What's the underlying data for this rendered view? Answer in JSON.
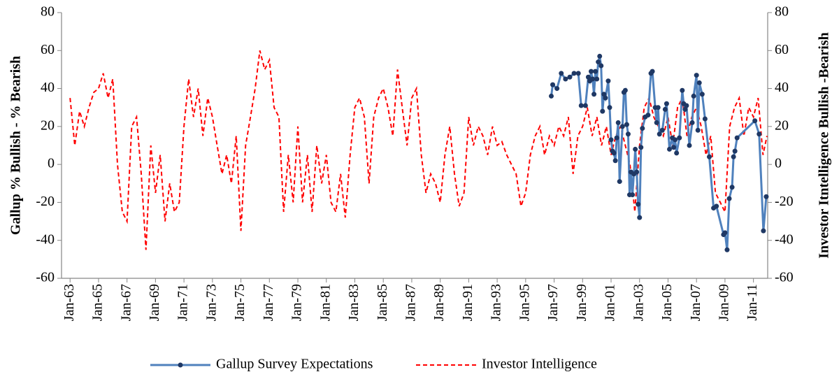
{
  "chart_data": {
    "type": "line",
    "y_label": "Gallup % Bullish - % Bearish",
    "y2_label": "Investor Itntelligence Bullish -Bearish",
    "xlim": [
      1962.4,
      2012.0
    ],
    "xticks": [
      {
        "value": 1963,
        "label": "Jan-63"
      },
      {
        "value": 1965,
        "label": "Jan-65"
      },
      {
        "value": 1967,
        "label": "Jan-67"
      },
      {
        "value": 1969,
        "label": "Jan-69"
      },
      {
        "value": 1971,
        "label": "Jan-71"
      },
      {
        "value": 1973,
        "label": "Jan-73"
      },
      {
        "value": 1975,
        "label": "Jan-75"
      },
      {
        "value": 1977,
        "label": "Jan-77"
      },
      {
        "value": 1979,
        "label": "Jan-79"
      },
      {
        "value": 1981,
        "label": "Jan-81"
      },
      {
        "value": 1983,
        "label": "Jan-83"
      },
      {
        "value": 1985,
        "label": "Jan-85"
      },
      {
        "value": 1987,
        "label": "Jan-87"
      },
      {
        "value": 1989,
        "label": "Jan-89"
      },
      {
        "value": 1991,
        "label": "Jan-91"
      },
      {
        "value": 1993,
        "label": "Jan-93"
      },
      {
        "value": 1995,
        "label": "Jan-95"
      },
      {
        "value": 1997,
        "label": "Jan-97"
      },
      {
        "value": 1999,
        "label": "Jan-99"
      },
      {
        "value": 2001,
        "label": "Jan-01"
      },
      {
        "value": 2003,
        "label": "Jan-03"
      },
      {
        "value": 2005,
        "label": "Jan-05"
      },
      {
        "value": 2007,
        "label": "Jan-07"
      },
      {
        "value": 2009,
        "label": "Jan-09"
      },
      {
        "value": 2011,
        "label": "Jan-11"
      }
    ],
    "ylim": [
      -60,
      80
    ],
    "yticks": [
      -60,
      -40,
      -20,
      0,
      20,
      40,
      60,
      80
    ],
    "y2lim": [
      -60,
      80
    ],
    "y2ticks": [
      -60,
      -40,
      -20,
      0,
      20,
      40,
      60,
      80
    ],
    "grid": false,
    "legend": "bottom",
    "series": [
      {
        "name": "Gallup Survey Expectations",
        "color": "#4f81bd",
        "marker": true,
        "dashed": false,
        "x": [
          1996.8,
          1996.9,
          1997.2,
          1997.5,
          1997.8,
          1998.1,
          1998.4,
          1998.7,
          1998.9,
          1999.2,
          1999.4,
          1999.5,
          1999.6,
          1999.7,
          1999.8,
          1999.9,
          2000.0,
          2000.1,
          2000.2,
          2000.3,
          2000.4,
          2000.5,
          2000.6,
          2000.8,
          2000.9,
          2001.0,
          2001.1,
          2001.2,
          2001.3,
          2001.4,
          2001.5,
          2001.6,
          2001.8,
          2001.9,
          2002.0,
          2002.1,
          2002.2,
          2002.3,
          2002.4,
          2002.5,
          2002.6,
          2002.7,
          2002.8,
          2002.9,
          2003.0,
          2003.1,
          2003.2,
          2003.4,
          2003.6,
          2003.8,
          2003.9,
          2004.1,
          2004.2,
          2004.3,
          2004.4,
          2004.6,
          2004.8,
          2004.9,
          2005.1,
          2005.3,
          2005.4,
          2005.5,
          2005.6,
          2005.8,
          2006.0,
          2006.1,
          2006.2,
          2006.3,
          2006.5,
          2006.7,
          2006.8,
          2007.0,
          2007.1,
          2007.2,
          2007.4,
          2007.6,
          2007.9,
          2008.2,
          2008.4,
          2008.9,
          2009.0,
          2009.15,
          2009.3,
          2009.5,
          2009.6,
          2009.7,
          2009.85,
          2011.1,
          2011.4,
          2011.7,
          2011.9
        ],
        "values": [
          36,
          42,
          40,
          48,
          45,
          46,
          48,
          48,
          31,
          31,
          46,
          44,
          49,
          45,
          37,
          49,
          45,
          54,
          57,
          52,
          28,
          37,
          35,
          44,
          30,
          13,
          7,
          6,
          2,
          14,
          22,
          -9,
          20,
          38,
          39,
          21,
          16,
          -16,
          -4,
          -16,
          -5,
          8,
          -4,
          -21,
          -28,
          9,
          19,
          25,
          26,
          48,
          49,
          30,
          22,
          30,
          16,
          18,
          29,
          32,
          8,
          14,
          9,
          13,
          6,
          14,
          39,
          32,
          29,
          31,
          10,
          22,
          36,
          47,
          18,
          43,
          37,
          24,
          4,
          -23,
          -22,
          -37,
          -36,
          -45,
          -18,
          -12,
          4,
          7,
          14,
          23,
          16,
          -35,
          -17
        ]
      },
      {
        "name": "Investor Intelligence",
        "color": "#ff0000",
        "marker": false,
        "dashed": true,
        "x": [
          1963,
          1963.33,
          1963.67,
          1964,
          1964.33,
          1964.67,
          1965,
          1965.33,
          1965.67,
          1966,
          1966.33,
          1966.67,
          1967,
          1967.33,
          1967.67,
          1968,
          1968.33,
          1968.67,
          1969,
          1969.33,
          1969.67,
          1970,
          1970.33,
          1970.67,
          1971,
          1971.33,
          1971.67,
          1972,
          1972.33,
          1972.67,
          1973,
          1973.33,
          1973.67,
          1974,
          1974.33,
          1974.67,
          1975,
          1975.33,
          1975.67,
          1976,
          1976.33,
          1976.67,
          1977,
          1977.33,
          1977.67,
          1978,
          1978.33,
          1978.67,
          1979,
          1979.33,
          1979.67,
          1980,
          1980.33,
          1980.67,
          1981,
          1981.33,
          1981.67,
          1982,
          1982.33,
          1982.67,
          1983,
          1983.33,
          1983.67,
          1984,
          1984.33,
          1984.67,
          1985,
          1985.33,
          1985.67,
          1986,
          1986.33,
          1986.67,
          1987,
          1987.33,
          1987.67,
          1988,
          1988.33,
          1988.67,
          1989,
          1989.33,
          1989.67,
          1990,
          1990.33,
          1990.67,
          1991,
          1991.33,
          1991.67,
          1992,
          1992.33,
          1992.67,
          1993,
          1993.33,
          1993.67,
          1994,
          1994.33,
          1994.67,
          1995,
          1995.33,
          1995.67,
          1996,
          1996.33,
          1996.67,
          1997,
          1997.33,
          1997.67,
          1998,
          1998.33,
          1998.67,
          1999,
          1999.33,
          1999.67,
          2000,
          2000.33,
          2000.67,
          2001,
          2001.33,
          2001.67,
          2002,
          2002.33,
          2002.67,
          2003,
          2003.33,
          2003.67,
          2004,
          2004.33,
          2004.67,
          2005,
          2005.33,
          2005.67,
          2006,
          2006.33,
          2006.67,
          2007,
          2007.33,
          2007.67,
          2008,
          2008.33,
          2008.67,
          2009,
          2009.33,
          2009.67,
          2010,
          2010.33,
          2010.67,
          2011,
          2011.33,
          2011.67,
          2011.95
        ],
        "values": [
          35,
          10,
          28,
          20,
          30,
          38,
          40,
          48,
          35,
          45,
          0,
          -25,
          -30,
          20,
          25,
          -5,
          -45,
          10,
          -15,
          5,
          -30,
          -10,
          -25,
          -20,
          20,
          45,
          25,
          40,
          15,
          35,
          25,
          10,
          -5,
          5,
          -10,
          15,
          -35,
          10,
          25,
          40,
          60,
          50,
          55,
          30,
          25,
          -25,
          5,
          -20,
          20,
          -20,
          5,
          -25,
          10,
          -10,
          5,
          -20,
          -25,
          -5,
          -28,
          5,
          30,
          35,
          25,
          -10,
          25,
          35,
          40,
          30,
          15,
          50,
          30,
          10,
          35,
          40,
          5,
          -15,
          -5,
          -10,
          -20,
          5,
          20,
          -5,
          -22,
          -15,
          25,
          10,
          20,
          15,
          5,
          20,
          10,
          12,
          5,
          0,
          -5,
          -22,
          -15,
          5,
          15,
          20,
          5,
          15,
          10,
          20,
          15,
          25,
          -5,
          15,
          20,
          30,
          15,
          25,
          10,
          20,
          5,
          15,
          20,
          10,
          0,
          -25,
          10,
          30,
          35,
          25,
          20,
          15,
          25,
          10,
          30,
          35,
          15,
          25,
          30,
          20,
          5,
          15,
          -15,
          -20,
          -25,
          20,
          30,
          35,
          15,
          30,
          25,
          35,
          5,
          15
        ]
      }
    ]
  }
}
